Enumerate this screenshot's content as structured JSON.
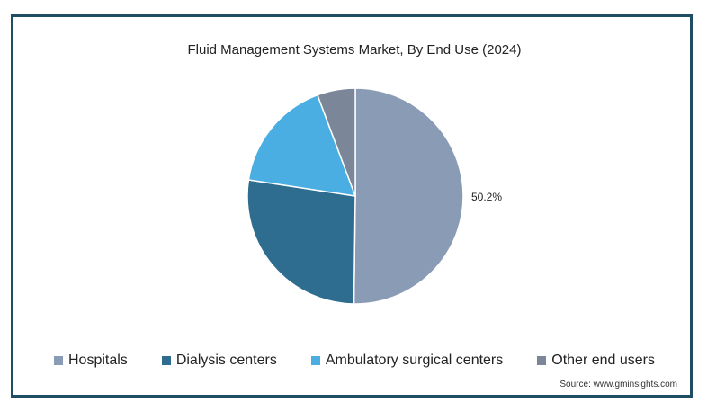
{
  "chart_data": {
    "type": "pie",
    "title": "Fluid Management Systems Market, By End Use (2024)",
    "categories": [
      "Hospitals",
      "Dialysis centers",
      "Ambulatory surgical centers",
      "Other end users"
    ],
    "values": [
      50.2,
      27.2,
      16.9,
      5.7
    ],
    "colors": [
      "#8a9bb5",
      "#2e6d8f",
      "#4aaee2",
      "#7b8799"
    ],
    "data_labels": [
      "50.2%",
      "",
      "",
      ""
    ],
    "legend_position": "bottom"
  },
  "source": "Source: www.gminsights.com"
}
